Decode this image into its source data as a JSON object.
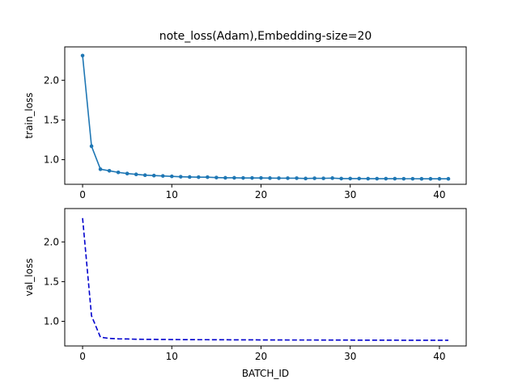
{
  "chart_data": [
    {
      "type": "line",
      "title": "note_loss(Adam),Embedding-size=20",
      "xlabel": "",
      "ylabel": "train_loss",
      "xlim": [
        -2,
        43
      ],
      "ylim": [
        0.69,
        2.42
      ],
      "xticks": [
        0,
        10,
        20,
        30,
        40
      ],
      "xtick_labels": [
        "0",
        "10",
        "20",
        "30",
        "40"
      ],
      "yticks": [
        1.0,
        1.5,
        2.0
      ],
      "ytick_labels": [
        "1.0",
        "1.5",
        "2.0"
      ],
      "grid": false,
      "line_color": "#1f77b4",
      "line_style": "solid",
      "marker": "circle",
      "x": [
        0,
        1,
        2,
        3,
        4,
        5,
        6,
        7,
        8,
        9,
        10,
        11,
        12,
        13,
        14,
        15,
        16,
        17,
        18,
        19,
        20,
        21,
        22,
        23,
        24,
        25,
        26,
        27,
        28,
        29,
        30,
        31,
        32,
        33,
        34,
        35,
        36,
        37,
        38,
        39,
        40,
        41
      ],
      "y": [
        2.31,
        1.17,
        0.88,
        0.86,
        0.84,
        0.825,
        0.815,
        0.805,
        0.8,
        0.795,
        0.79,
        0.785,
        0.782,
        0.78,
        0.78,
        0.775,
        0.772,
        0.772,
        0.77,
        0.77,
        0.77,
        0.768,
        0.767,
        0.767,
        0.767,
        0.763,
        0.766,
        0.765,
        0.768,
        0.762,
        0.762,
        0.762,
        0.761,
        0.761,
        0.761,
        0.761,
        0.76,
        0.76,
        0.759,
        0.759,
        0.759,
        0.759
      ]
    },
    {
      "type": "line",
      "title": "",
      "xlabel": "BATCH_ID",
      "ylabel": "val_loss",
      "xlim": [
        -2,
        43
      ],
      "ylim": [
        0.69,
        2.42
      ],
      "xticks": [
        0,
        10,
        20,
        30,
        40
      ],
      "xtick_labels": [
        "0",
        "10",
        "20",
        "30",
        "40"
      ],
      "yticks": [
        1.0,
        1.5,
        2.0
      ],
      "ytick_labels": [
        "1.0",
        "1.5",
        "2.0"
      ],
      "grid": false,
      "line_color": "#0000cd",
      "line_style": "dashed",
      "marker": "none",
      "x": [
        0,
        1,
        2,
        3,
        4,
        5,
        6,
        7,
        8,
        9,
        10,
        11,
        12,
        13,
        14,
        15,
        16,
        17,
        18,
        19,
        20,
        21,
        22,
        23,
        24,
        25,
        26,
        27,
        28,
        29,
        30,
        31,
        32,
        33,
        34,
        35,
        36,
        37,
        38,
        39,
        40,
        41
      ],
      "y": [
        2.3,
        1.07,
        0.8,
        0.785,
        0.78,
        0.778,
        0.775,
        0.774,
        0.773,
        0.772,
        0.771,
        0.77,
        0.77,
        0.769,
        0.769,
        0.768,
        0.768,
        0.767,
        0.767,
        0.767,
        0.766,
        0.766,
        0.766,
        0.765,
        0.765,
        0.765,
        0.765,
        0.764,
        0.764,
        0.764,
        0.764,
        0.763,
        0.763,
        0.763,
        0.763,
        0.763,
        0.762,
        0.762,
        0.762,
        0.762,
        0.762,
        0.762
      ]
    }
  ]
}
